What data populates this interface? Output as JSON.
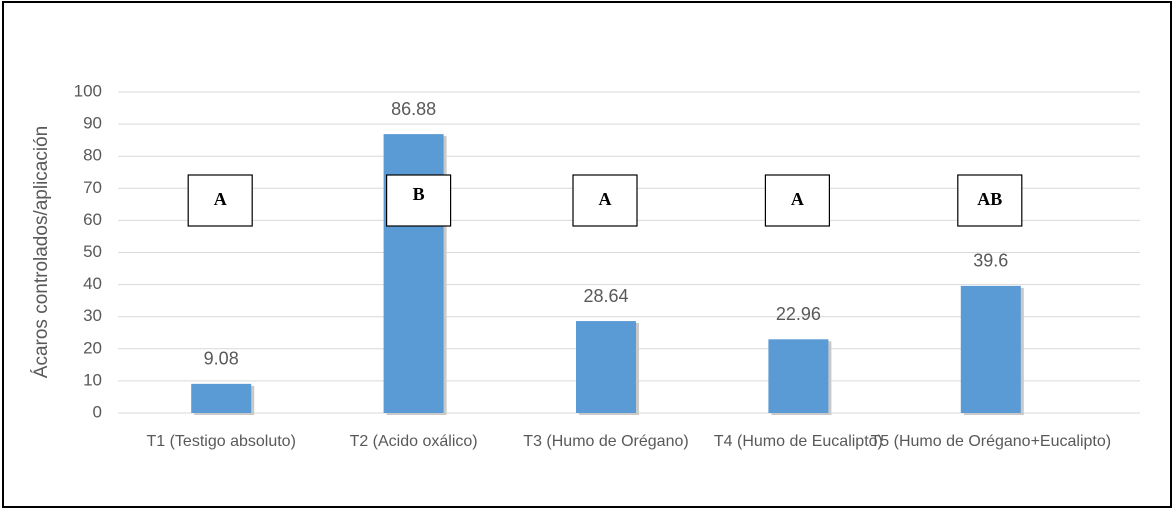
{
  "chart_data": {
    "type": "bar",
    "y_label": "Ácaros controlados/aplicación",
    "categories": [
      "T1 (Testigo absoluto)",
      "T2 (Acido oxálico)",
      "T3 (Humo de Orégano)",
      "T4 (Humo de Eucalipto)",
      "T5 (Humo de Orégano+Eucalipto)"
    ],
    "values": [
      9.08,
      86.88,
      28.64,
      22.96,
      39.6
    ],
    "annotations": [
      "A",
      "B",
      "A",
      "A",
      "AB"
    ],
    "color": "#5b9bd5",
    "ylim": [
      0,
      100
    ],
    "yticks": [
      0,
      10,
      20,
      30,
      40,
      50,
      60,
      70,
      80,
      90,
      100
    ],
    "grid": true
  }
}
